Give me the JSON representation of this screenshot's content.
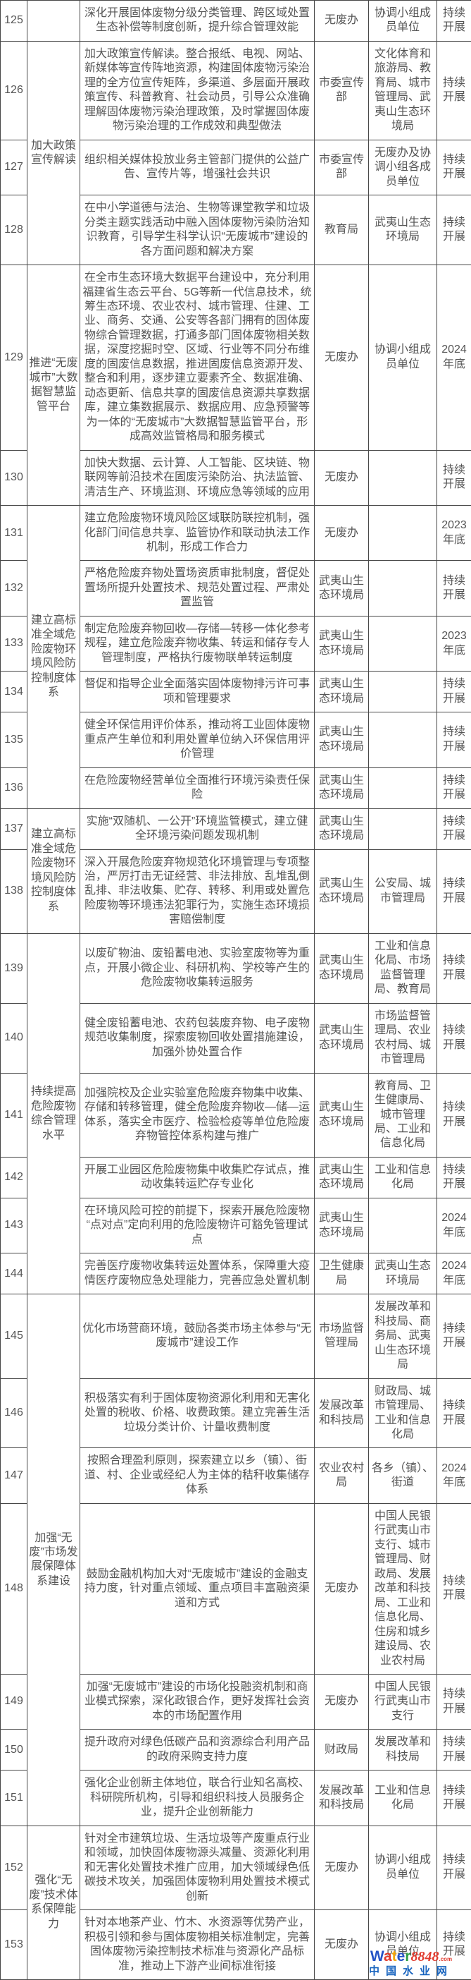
{
  "page": {
    "background_color": "#ffffff",
    "text_color": "#555555",
    "border_color": "#474747"
  },
  "table": {
    "description_visible_rows": "125-153",
    "category_groups": [
      {
        "label": "",
        "from": 125,
        "to": 125
      },
      {
        "label": "加大政策宣传解读",
        "from": 126,
        "to": 128
      },
      {
        "label": "推进“无废城市”大数据智慧监管平台",
        "from": 129,
        "to": 130
      },
      {
        "label": "建立高标准全域危险废物环境风险防控制度体系",
        "from": 131,
        "to": 136
      },
      {
        "label": "建立高标准全域危险废物环境风险防控制度体系",
        "from": 137,
        "to": 138
      },
      {
        "label": "持续提高危险废物综合管理水平",
        "from": 139,
        "to": 144
      },
      {
        "label": "加强“无废”市场发展保障体系建设",
        "from": 145,
        "to": 151
      },
      {
        "label": "强化“无废”技术体系保障能力",
        "from": 152,
        "to": 153
      }
    ],
    "rows": [
      {
        "num": "125",
        "task": "深化开展固体废物分级分类管理、跨区域处置生态补偿等制度创新，提升综合管理效能",
        "lead": "无废办",
        "partners": "协调小组成员单位",
        "timeline": "持续开展"
      },
      {
        "num": "126",
        "task": "加大政策宣传解读。整合报纸、电视、网站、新媒体等宣传阵地资源，构建固体废物污染治理的全方位宣传矩阵，多渠道、多层面开展政策宣传、科普教育、社会动员，引导公众准确理解固体废物污染治理政策，及时掌握固体废物污染治理的工作成效和典型做法",
        "lead": "市委宣传部",
        "partners": "文化体育和旅游局、教育局、城市管理局、武夷山生态环境局",
        "timeline": "持续开展"
      },
      {
        "num": "127",
        "task": "组织相关媒体投放业务主管部门提供的公益广告、宣传片等，增强社会共识",
        "lead": "市委宣传部",
        "partners": "无废办及协调小组各成员单位",
        "timeline": "持续开展"
      },
      {
        "num": "128",
        "task": "在中小学道德与法治、生物等课堂教学和垃圾分类主题实践活动中融入固体废物污染防治知识教育，引导学生科学认识“无废城市”建设的各方面问题和解决方案",
        "lead": "教育局",
        "partners": "武夷山生态环境局",
        "timeline": "持续开展"
      },
      {
        "num": "129",
        "task": "在全市生态环境大数据平台建设中，充分利用福建省生态云平台、5G等新一代信息技术，统筹生态环境、农业农村、城市管理、住建、工业、商务、交通、公安等各部门拥有的固体废物综合管理数据，打通多部门固体废物相关数据，深度挖掘时空、区域、行业等不同分布维度的固废信息数据，推进固废信息资源开发、整合和利用，逐步建立要素齐全、数据准确、动态更新、信息共享的固废信息资源共享数据库，建立集数据展示、数据应用、应急预警等为一体的“无废城市”大数据智慧监管平台，形成高效监管格局和服务模式",
        "lead": "无废办",
        "partners": "协调小组成员单位",
        "timeline": "2024年底"
      },
      {
        "num": "130",
        "task": "加快大数据、云计算、人工智能、区块链、物联网等前沿技术在固废污染防治、执法监管、清洁生产、环境监测、环境应急等领域的应用",
        "lead": "无废办",
        "partners": "",
        "timeline": "持续开展"
      },
      {
        "num": "131",
        "task": "建立危险废物环境风险区域联防联控机制，强化部门间信息共享、监管协作和联动执法工作机制，形成工作合力",
        "lead": "无废办",
        "partners": "",
        "timeline": "2023年底"
      },
      {
        "num": "132",
        "task": "严格危险废弃物处置场资质审批制度，督促处置场所提升处置技术、规范处置过程、严肃处置监管",
        "lead": "武夷山生态环境局",
        "partners": "",
        "timeline": "持续开展"
      },
      {
        "num": "133",
        "task": "制定危险废弃物回收—存储—转移一体化参考规程，建立危险废弃物收集、转运和储存专人管理制度，严格执行废物联单转运制度",
        "lead": "武夷山生态环境局",
        "partners": "",
        "timeline": "2023年底"
      },
      {
        "num": "134",
        "task": "督促和指导企业全面落实固体废物排污许可事项和管理要求",
        "lead": "武夷山生态环境局",
        "partners": "",
        "timeline": "持续开展"
      },
      {
        "num": "135",
        "task": "健全环保信用评价体系，推动将工业固体废物重点产生单位和利用处置单位纳入环保信用评价管理",
        "lead": "武夷山生态环境局",
        "partners": "",
        "timeline": "持续开展"
      },
      {
        "num": "136",
        "task": "在危险废物经营单位全面推行环境污染责任保险",
        "lead": "武夷山生态环境局",
        "partners": "",
        "timeline": "持续开展"
      },
      {
        "num": "137",
        "task": "实施“双随机、一公开”环境监管模式，建立健全环境污染问题发现机制",
        "lead": "武夷山生态环境局",
        "partners": "",
        "timeline": "持续开展"
      },
      {
        "num": "138",
        "task": "深入开展危险废弃物规范化环境管理与专项整治，严厉打击无证经营、非法排放、乱堆乱倒乱排、非法收集、贮存、转移、利用或处置危险废物等环境违法犯罪行为，实施生态环境损害赔偿制度",
        "lead": "武夷山生态环境局",
        "partners": "公安局、城市管理局",
        "timeline": "持续开展"
      },
      {
        "num": "139",
        "task": "以废矿物油、废铅蓄电池、实验室废物等为重点，开展小微企业、科研机构、学校等产生的危险废物收集转运服务",
        "lead": "武夷山生态环境局",
        "partners": "工业和信息化局、市场监督管理局、教育局",
        "timeline": "持续开展"
      },
      {
        "num": "140",
        "task": "健全废铅蓄电池、农药包装废弃物、电子废物规范收集制度，探索废物回收处置措施建设，加强外协处置合作",
        "lead": "武夷山生态环境局",
        "partners": "市场监督管理局、农业农村局、城市管理局",
        "timeline": "持续开展"
      },
      {
        "num": "141",
        "task": "加强院校及企业实验室危险废弃物集中收集、存储和转移管理，健全危险废弃物收—储—运体系，落实全市医疗、检验检疫等单位危险废弃物管控体系构建与推广",
        "lead": "武夷山生态环境局",
        "partners": "教育局、卫生健康局、城市管理局、工业和信息化局",
        "timeline": "持续开展"
      },
      {
        "num": "142",
        "task": "开展工业园区危险废物集中收集贮存试点，推动收集转运贮存专业化",
        "lead": "武夷山生态环境局",
        "partners": "工业和信息化局",
        "timeline": "持续开展"
      },
      {
        "num": "143",
        "task": "在环境风险可控的前提下，探索开展危险废物“点对点”定向利用的危险废物许可豁免管理试点",
        "lead": "武夷山生态环境局",
        "partners": "",
        "timeline": "2024年底"
      },
      {
        "num": "144",
        "task": "完善医疗废物收集转运处置体系，保障重大疫情医疗废物应急处理能力，完善应急处置机制",
        "lead": "卫生健康局",
        "partners": "武夷山生态环境局",
        "timeline": "2024年底"
      },
      {
        "num": "145",
        "task": "优化市场营商环境，鼓励各类市场主体参与“无废城市”建设工作",
        "lead": "市场监督管理局",
        "partners": "发展改革和科技局、商务局、武夷山生态环境局",
        "timeline": "持续开展"
      },
      {
        "num": "146",
        "task": "积极落实有利于固体废物资源化利用和无害化处置的税收、价格、收费政策。建立完善生活垃圾分类计价、计量收费制度",
        "lead": "发展改革和科技局",
        "partners": "财政局、城市管理局、工业和信息化局",
        "timeline": "持续开展"
      },
      {
        "num": "147",
        "task": "按照合理盈利原则，探索建立以乡（镇）、街道、村、企业或经纪人为主体的秸秆收集储存体系",
        "lead": "农业农村局",
        "partners": "各乡（镇）、街道",
        "timeline": "2024年底"
      },
      {
        "num": "148",
        "task": "鼓励金融机构加大对“无废城市”建设的金融支持力度，针对重点领域、重点项目丰富融资渠道和方式",
        "lead": "无废办",
        "partners": "中国人民银行武夷山市支行、城市管理局、财政局、发展改革和科技局、工业和信息化局、住房和城乡建设局、农业农村局",
        "timeline": "持续开展"
      },
      {
        "num": "149",
        "task": "加强“无废城市”建设的市场化投融资机制和商业模式探索，深化政银合作，更好发挥社会资本的市场配置作用",
        "lead": "无废办",
        "partners": "中国人民银行武夷山市支行",
        "timeline": "持续开展"
      },
      {
        "num": "150",
        "task": "提升政府对绿色低碳产品和资源综合利用产品的政府采购支持力度",
        "lead": "财政局",
        "partners": "发展改革和科技局",
        "timeline": "持续开展"
      },
      {
        "num": "151",
        "task": "强化企业创新主体地位，联合行业知名高校、科研院所机构，引导和组织科技人员服务企业，提升企业创新能力",
        "lead": "发展改革和科技局",
        "partners": "工业和信息化局",
        "timeline": "持续开展"
      },
      {
        "num": "152",
        "task": "针对全市建筑垃圾、生活垃圾等产废重点行业和领域，加快固体废物源头减量、资源化利用和无害化处置技术推广应用，加大领域绿色低碳技术攻关，加强固体废物利用处置技术模式创新",
        "lead": "无废办",
        "partners": "协调小组成员单位",
        "timeline": "持续开展"
      },
      {
        "num": "153",
        "task": "针对本地茶产业、竹木、水资源等优势产业，积极引领和参与固体废物相关标准制定，完善固体废物污染控制技术标准与资源化产品标准，推动上下游产业间标准衔接",
        "lead": "无废办",
        "partners": "协调小组成员单位",
        "timeline": "持续开展"
      }
    ]
  },
  "watermark": {
    "word_letters": [
      {
        "t": "W",
        "c": "#2353c6"
      },
      {
        "t": "a",
        "c": "#e03a2d"
      },
      {
        "t": "t",
        "c": "#f2a60d"
      },
      {
        "t": "e",
        "c": "#2353c6"
      },
      {
        "t": "r",
        "c": "#2f9e44"
      }
    ],
    "suffix": "8848",
    "suffix_color": "#e03a2d",
    "dotcom": ".com",
    "dotcom_color": "#e03a2d",
    "site": "中国水业网",
    "site_color": "#1763be"
  }
}
